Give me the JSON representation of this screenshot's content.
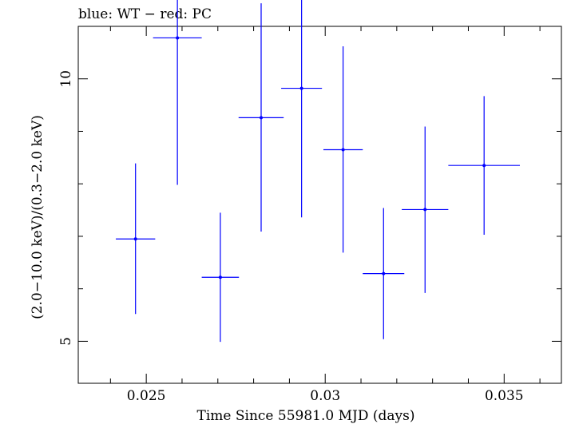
{
  "chart_data": {
    "type": "scatter",
    "title": "blue: WT − red: PC",
    "xlabel": "Time Since 55981.0 MJD (days)",
    "ylabel": "(2.0−10.0 keV)/(0.3−2.0 keV)",
    "xlim": [
      0.0231,
      0.0366
    ],
    "ylim": [
      4.2,
      11.0
    ],
    "y_scale": "linear",
    "x_ticks": [
      {
        "value": 0.025,
        "label": "0.025"
      },
      {
        "value": 0.03,
        "label": "0.03"
      },
      {
        "value": 0.035,
        "label": "0.035"
      }
    ],
    "y_ticks": [
      {
        "value": 5,
        "label": "5"
      },
      {
        "value": 10,
        "label": "10"
      }
    ],
    "grid": false,
    "series": [
      {
        "name": "WT",
        "color": "#0000ff",
        "points": [
          {
            "x": 0.0247,
            "y": 6.95,
            "xerr": 0.00055,
            "ylo": 5.52,
            "yhi": 8.39
          },
          {
            "x": 0.02587,
            "y": 10.78,
            "xerr": 0.00068,
            "ylo": 7.98,
            "yhi": 13.58
          },
          {
            "x": 0.02707,
            "y": 6.22,
            "xerr": 0.00052,
            "ylo": 4.99,
            "yhi": 7.45
          },
          {
            "x": 0.02821,
            "y": 9.26,
            "xerr": 0.00063,
            "ylo": 7.09,
            "yhi": 11.44
          },
          {
            "x": 0.02934,
            "y": 9.82,
            "xerr": 0.00057,
            "ylo": 7.36,
            "yhi": 12.29
          },
          {
            "x": 0.0305,
            "y": 8.65,
            "xerr": 0.00055,
            "ylo": 6.69,
            "yhi": 10.62
          },
          {
            "x": 0.03163,
            "y": 6.29,
            "xerr": 0.00058,
            "ylo": 5.04,
            "yhi": 7.54
          },
          {
            "x": 0.03279,
            "y": 7.51,
            "xerr": 0.00065,
            "ylo": 5.92,
            "yhi": 9.09
          },
          {
            "x": 0.03444,
            "y": 8.35,
            "xerr": 0.001,
            "ylo": 7.03,
            "yhi": 9.67
          }
        ]
      }
    ]
  }
}
